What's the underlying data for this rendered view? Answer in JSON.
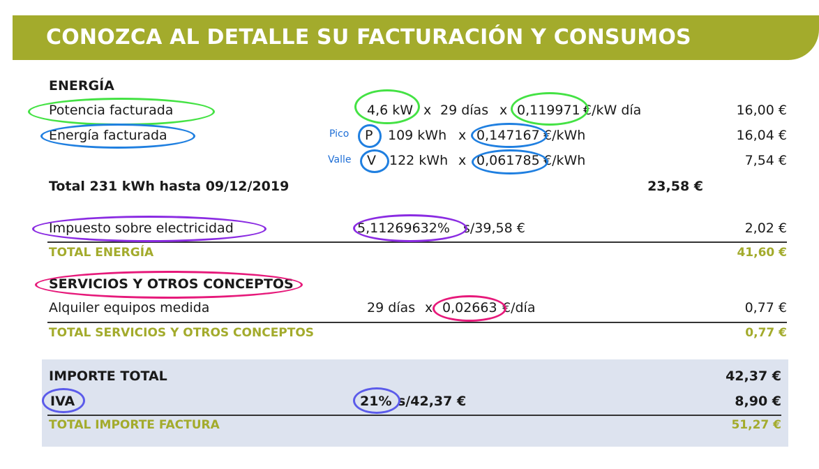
{
  "header": {
    "title": "CONOZCA AL DETALLE SU FACTURACIÓN Y CONSUMOS"
  },
  "energia": {
    "section_label": "ENERGÍA",
    "potencia": {
      "label": "Potencia facturada",
      "power": "4,6 kW",
      "x1": "x",
      "days": "29 días",
      "x2": "x",
      "price": "0,119971",
      "unit": "€/kW día",
      "amount": "16,00 €"
    },
    "energia_facturada": {
      "label": "Energía facturada",
      "pico": {
        "tag": "Pico",
        "letter": "P",
        "kwh": "109 kWh",
        "x": "x",
        "price": "0,147167",
        "unit": "€/kWh",
        "amount": "16,04 €"
      },
      "valle": {
        "tag": "Valle",
        "letter": "V",
        "kwh": "122 kWh",
        "x": "x",
        "price": "0,061785",
        "unit": "€/kWh",
        "amount": "7,54 €"
      }
    },
    "total_line": {
      "label": "Total 231 kWh hasta 09/12/2019",
      "amount": "23,58 €"
    },
    "impuesto": {
      "label": "Impuesto sobre electricidad",
      "rate": "5,11269632%",
      "base": "s/39,58 €",
      "amount": "2,02 €"
    },
    "total": {
      "label": "TOTAL ENERGÍA",
      "amount": "41,60 €"
    }
  },
  "servicios": {
    "section_label": "SERVICIOS Y OTROS CONCEPTOS",
    "alquiler": {
      "label": "Alquiler equipos medida",
      "days": "29 días",
      "x": "x",
      "price": "0,02663",
      "unit": "€/día",
      "amount": "0,77 €"
    },
    "total": {
      "label": "TOTAL SERVICIOS Y OTROS CONCEPTOS",
      "amount": "0,77 €"
    }
  },
  "resumen": {
    "importe_total": {
      "label": "IMPORTE TOTAL",
      "amount": "42,37 €"
    },
    "iva": {
      "label": "IVA",
      "rate": "21%",
      "base": "s/42,37 €",
      "amount": "8,90 €"
    },
    "total_factura": {
      "label": "TOTAL IMPORTE FACTURA",
      "amount": "51,27 €"
    }
  },
  "colors": {
    "olive": "#a3ab2c",
    "summary_bg": "#dde3ef",
    "annot_green": "#44e244",
    "annot_blue": "#1f7fe0",
    "annot_purple": "#8a2be2",
    "annot_magenta": "#e6197a",
    "annot_lavender": "#5b5bea"
  }
}
